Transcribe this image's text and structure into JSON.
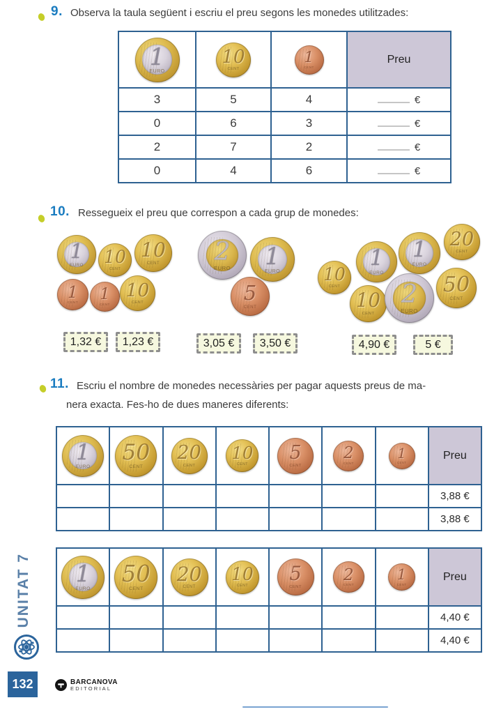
{
  "sidebar": {
    "unit_label": "UNITAT 7",
    "page_number": "132"
  },
  "publisher": {
    "name": "BARCANOVA",
    "sub": "EDITORIAL"
  },
  "coins": {
    "e2": {
      "value": "2",
      "sub": "euro",
      "style": "bi-sg"
    },
    "e1": {
      "value": "1",
      "sub": "euro",
      "style": "bi-gs"
    },
    "c50": {
      "value": "50",
      "sub": "cent",
      "style": "gold"
    },
    "c20": {
      "value": "20",
      "sub": "cent",
      "style": "gold"
    },
    "c10": {
      "value": "10",
      "sub": "cent",
      "style": "gold"
    },
    "c5": {
      "value": "5",
      "sub": "cent",
      "style": "copper"
    },
    "c2": {
      "value": "2",
      "sub": "cent",
      "style": "copper"
    },
    "c1": {
      "value": "1",
      "sub": "cent",
      "style": "copper"
    }
  },
  "exercise9": {
    "number": "9.",
    "prompt": "Observa la taula següent i escriu el preu segons les monedes utilitzades:",
    "table": {
      "price_header": "Preu",
      "currency": "€",
      "rows": [
        [
          "3",
          "5",
          "4"
        ],
        [
          "0",
          "6",
          "3"
        ],
        [
          "2",
          "7",
          "2"
        ],
        [
          "0",
          "4",
          "6"
        ]
      ]
    }
  },
  "exercise10": {
    "number": "10.",
    "prompt": "Ressegueix el preu que correspon a cada grup de monedes:",
    "price_options": [
      "1,32 €",
      "1,23 €",
      "3,05 €",
      "3,50 €",
      "4,90 €",
      "5 €"
    ]
  },
  "exercise11": {
    "number": "11.",
    "prompt_line1": "Escriu el nombre de monedes necessàries per pagar aquests preus de ma-",
    "prompt_line2": "nera exacta. Fes-ho de dues maneres diferents:",
    "table1": {
      "price_header": "Preu",
      "prices": [
        "3,88 €",
        "3,88 €"
      ]
    },
    "table2": {
      "price_header": "Preu",
      "prices": [
        "4,40 €",
        "4,40 €"
      ]
    }
  }
}
